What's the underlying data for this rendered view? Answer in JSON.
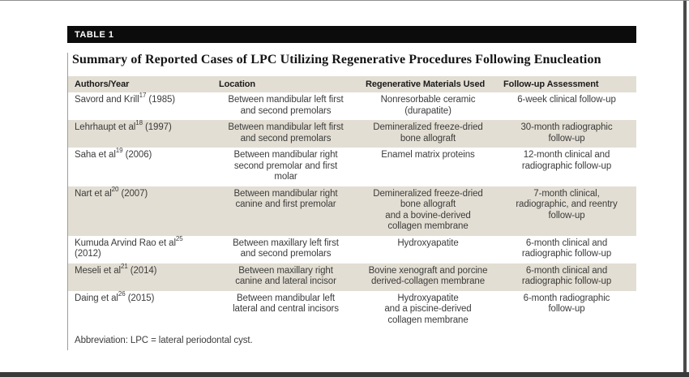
{
  "figure": {
    "label": "TABLE 1",
    "title": "Summary of Reported Cases of LPC Utilizing Regenerative Procedures Following Enucleation",
    "abbreviation": "Abbreviation: LPC = lateral periodontal cyst."
  },
  "table": {
    "columns": [
      "Authors/Year",
      "Location",
      "Regenerative Materials Used",
      "Follow-up Assessment"
    ],
    "rows": [
      {
        "authors": {
          "name": "Savord and Krill",
          "ref": "17",
          "year": " (1985)"
        },
        "location": "Between mandibular left first\nand second premolars",
        "materials": "Nonresorbable ceramic\n(durapatite)",
        "followup": "6-week clinical follow-up"
      },
      {
        "authors": {
          "name": "Lehrhaupt et al",
          "ref": "18",
          "year": " (1997)"
        },
        "location": "Between mandibular left first\nand second premolars",
        "materials": "Demineralized freeze-dried\nbone allograft",
        "followup": "30-month radiographic\nfollow-up"
      },
      {
        "authors": {
          "name": "Saha et al",
          "ref": "19",
          "year": " (2006)"
        },
        "location": "Between mandibular right\nsecond premolar and first\nmolar",
        "materials": "Enamel matrix proteins",
        "followup": "12-month clinical and\nradiographic follow-up"
      },
      {
        "authors": {
          "name": "Nart et al",
          "ref": "20",
          "year": " (2007)"
        },
        "location": "Between mandibular right\ncanine and first premolar",
        "materials": "Demineralized freeze-dried\nbone allograft\nand a bovine-derived\ncollagen membrane",
        "followup": "7-month clinical,\nradiographic, and reentry\nfollow-up"
      },
      {
        "authors": {
          "name": "Kumuda Arvind Rao et al",
          "ref": "25",
          "year": "\n(2012)"
        },
        "location": "Between maxillary left first\nand second premolars",
        "materials": "Hydroxyapatite",
        "followup": "6-month clinical and\nradiographic follow-up"
      },
      {
        "authors": {
          "name": "Meseli et al",
          "ref": "21",
          "year": " (2014)"
        },
        "location": "Between maxillary right\ncanine and lateral incisor",
        "materials": "Bovine xenograft and porcine\nderived-collagen membrane",
        "followup": "6-month clinical and\nradiographic follow-up"
      },
      {
        "authors": {
          "name": "Daing et al",
          "ref": "26",
          "year": " (2015)"
        },
        "location": "Between mandibular left\nlateral and central incisors",
        "materials": "Hydroxyapatite\nand a piscine-derived\ncollagen membrane",
        "followup": "6-month radiographic\nfollow-up"
      }
    ]
  },
  "colors": {
    "row_shade": "#e3ded3",
    "label_bar_bg": "#0c0c0c",
    "label_bar_text": "#ffffff",
    "body_text": "#3c3c3c",
    "frame": "#4a4a4a"
  }
}
